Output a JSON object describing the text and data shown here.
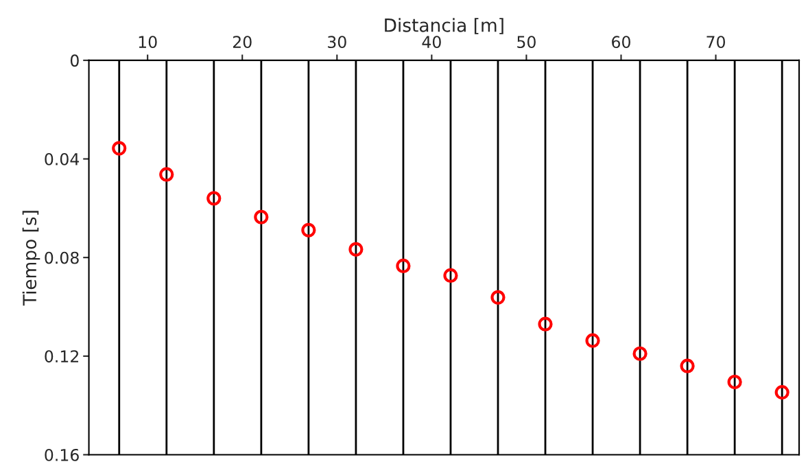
{
  "chart_data": {
    "type": "scatter",
    "xlabel": "Distancia [m]",
    "ylabel": "Tiempo [s]",
    "x": [
      7,
      12,
      17,
      22,
      27,
      32,
      37,
      42,
      47,
      52,
      57,
      62,
      67,
      72,
      77
    ],
    "series": [
      {
        "color": "#ff0000",
        "values": [
          0.0357,
          0.0463,
          0.056,
          0.0636,
          0.0689,
          0.0767,
          0.0834,
          0.0873,
          0.0962,
          0.107,
          0.1137,
          0.119,
          0.124,
          0.1305,
          0.1347
        ]
      }
    ],
    "marker": "circle",
    "xlim": [
      3.8,
      78.8
    ],
    "xticks": [
      10,
      20,
      30,
      40,
      50,
      60,
      70
    ],
    "ylim": [
      0.16,
      0
    ],
    "yticks": [
      0,
      0.04,
      0.08,
      0.12,
      0.16
    ],
    "grid": false,
    "ref_lines": [
      {
        "axis": "x",
        "value": 7,
        "color": "#000000"
      },
      {
        "axis": "x",
        "value": 12,
        "color": "#000000"
      },
      {
        "axis": "x",
        "value": 17,
        "color": "#000000"
      },
      {
        "axis": "x",
        "value": 22,
        "color": "#000000"
      },
      {
        "axis": "x",
        "value": 27,
        "color": "#000000"
      },
      {
        "axis": "x",
        "value": 32,
        "color": "#000000"
      },
      {
        "axis": "x",
        "value": 37,
        "color": "#000000"
      },
      {
        "axis": "x",
        "value": 42,
        "color": "#000000"
      },
      {
        "axis": "x",
        "value": 47,
        "color": "#000000"
      },
      {
        "axis": "x",
        "value": 52,
        "color": "#000000"
      },
      {
        "axis": "x",
        "value": 57,
        "color": "#000000"
      },
      {
        "axis": "x",
        "value": 62,
        "color": "#000000"
      },
      {
        "axis": "x",
        "value": 67,
        "color": "#000000"
      },
      {
        "axis": "x",
        "value": 72,
        "color": "#000000"
      },
      {
        "axis": "x",
        "value": 77,
        "color": "#000000"
      }
    ]
  }
}
